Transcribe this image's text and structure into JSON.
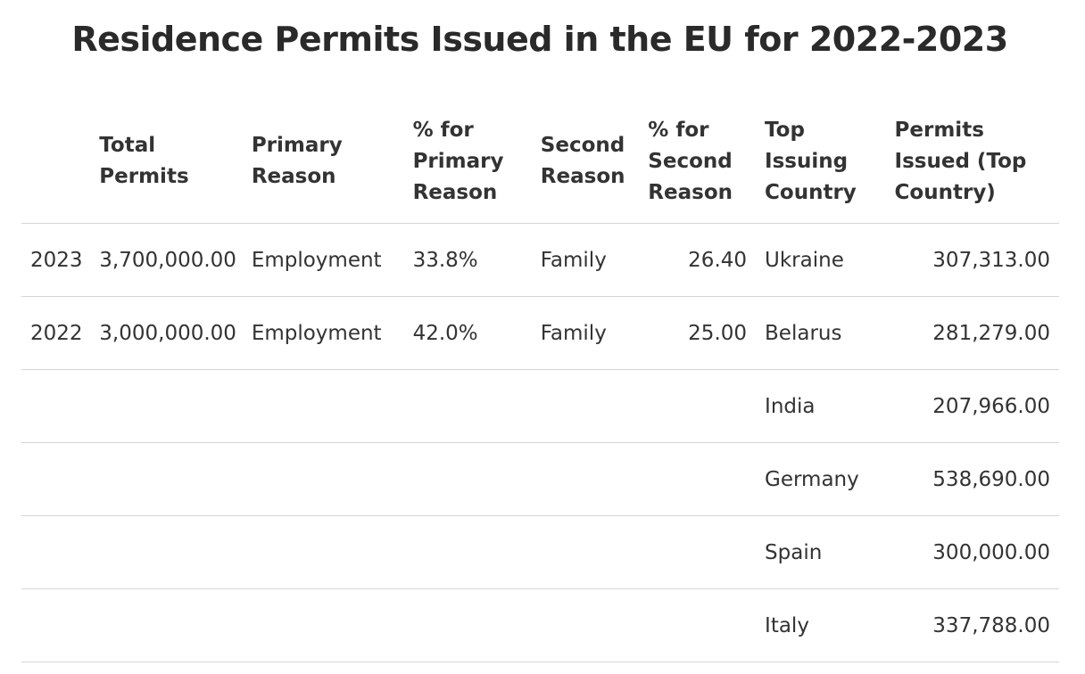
{
  "chart_data": {
    "type": "table",
    "title": "Residence Permits Issued in the EU for 2022-2023",
    "columns": [
      "",
      "Total Permits",
      "Primary Reason",
      "% for Primary Reason",
      "Second Reason",
      "% for Second Reason",
      "Top Issuing Country",
      "Permits Issued (Top Country)"
    ],
    "rows": [
      [
        "2023",
        "3,700,000.00",
        "Employment",
        "33.8%",
        "Family",
        "26.40",
        "Ukraine",
        "307,313.00"
      ],
      [
        "2022",
        "3,000,000.00",
        "Employment",
        "42.0%",
        "Family",
        "25.00",
        "Belarus",
        "281,279.00"
      ],
      [
        "",
        "",
        "",
        "",
        "",
        "",
        "India",
        "207,966.00"
      ],
      [
        "",
        "",
        "",
        "",
        "",
        "",
        "Germany",
        "538,690.00"
      ],
      [
        "",
        "",
        "",
        "",
        "",
        "",
        "Spain",
        "300,000.00"
      ],
      [
        "",
        "",
        "",
        "",
        "",
        "",
        "Italy",
        "337,788.00"
      ]
    ],
    "column_align": [
      "left",
      "right",
      "left",
      "left",
      "left",
      "right",
      "left",
      "right"
    ]
  }
}
